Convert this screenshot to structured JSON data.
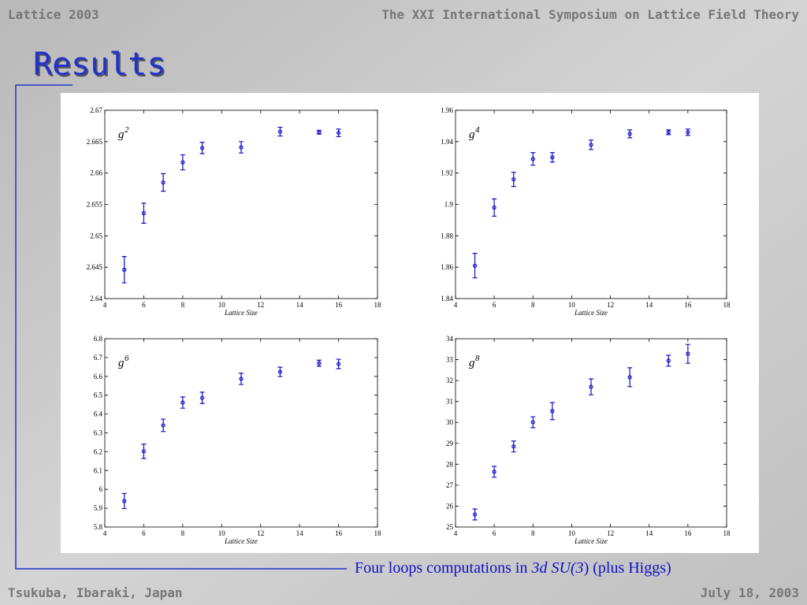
{
  "slide": {
    "header_left": "Lattice 2003",
    "header_right": "The XXI International Symposium on Lattice Field Theory",
    "title": "Results",
    "caption": [
      {
        "text": "Four loops computations in ",
        "italic": false
      },
      {
        "text": "3d SU(3",
        "italic": true
      },
      {
        "text": ") (plus Higgs)",
        "italic": false
      }
    ],
    "footer_left": "Tsukuba, Ibaraki, Japan",
    "footer_right": "July 18, 2003"
  },
  "chart_data": [
    {
      "type": "scatter",
      "title": "g",
      "title_superscript": "2",
      "xlabel": "Lattice Size",
      "xlim": [
        4,
        18
      ],
      "xticks": [
        4,
        6,
        8,
        10,
        12,
        14,
        16,
        18
      ],
      "ylim": [
        2.64,
        2.67
      ],
      "yticks": [
        2.64,
        2.645,
        2.65,
        2.655,
        2.66,
        2.665,
        2.67
      ],
      "color": "#1010c8",
      "x": [
        5,
        6,
        7,
        8,
        9,
        11,
        13,
        15,
        16
      ],
      "values": [
        2.6446,
        2.6536,
        2.6585,
        2.6617,
        2.664,
        2.6641,
        2.6666,
        2.6665,
        2.6664
      ],
      "errors": [
        0.0021,
        0.0016,
        0.0014,
        0.0012,
        0.0009,
        0.0009,
        0.0007,
        0.0003,
        0.0006
      ]
    },
    {
      "type": "scatter",
      "title": "g",
      "title_superscript": "4",
      "xlabel": "Lattice Size",
      "xlim": [
        4,
        18
      ],
      "xticks": [
        4,
        6,
        8,
        10,
        12,
        14,
        16,
        18
      ],
      "ylim": [
        1.84,
        1.96
      ],
      "yticks": [
        1.84,
        1.86,
        1.88,
        1.9,
        1.92,
        1.94,
        1.96
      ],
      "color": "#1010c8",
      "x": [
        5,
        6,
        7,
        8,
        9,
        11,
        13,
        15,
        16
      ],
      "values": [
        1.861,
        1.898,
        1.916,
        1.929,
        1.93,
        1.938,
        1.945,
        1.946,
        1.946
      ],
      "errors": [
        0.0078,
        0.0055,
        0.0045,
        0.004,
        0.003,
        0.003,
        0.0025,
        0.0015,
        0.002
      ]
    },
    {
      "type": "scatter",
      "title": "g",
      "title_superscript": "6",
      "xlabel": "Lattice Size",
      "xlim": [
        4,
        18
      ],
      "xticks": [
        4,
        6,
        8,
        10,
        12,
        14,
        16,
        18
      ],
      "ylim": [
        5.8,
        6.8
      ],
      "yticks": [
        5.8,
        5.9,
        6,
        6.1,
        6.2,
        6.3,
        6.4,
        6.5,
        6.6,
        6.7,
        6.8
      ],
      "color": "#1010c8",
      "x": [
        5,
        6,
        7,
        8,
        9,
        11,
        13,
        15,
        16
      ],
      "values": [
        5.938,
        6.202,
        6.34,
        6.461,
        6.486,
        6.587,
        6.624,
        6.67,
        6.666
      ],
      "errors": [
        0.04,
        0.038,
        0.033,
        0.03,
        0.03,
        0.03,
        0.025,
        0.016,
        0.025
      ]
    },
    {
      "type": "scatter",
      "title": "g",
      "title_superscript": "8",
      "xlabel": "Lattice Size",
      "xlim": [
        4,
        18
      ],
      "xticks": [
        4,
        6,
        8,
        10,
        12,
        14,
        16,
        18
      ],
      "ylim": [
        25,
        34
      ],
      "yticks": [
        25,
        26,
        27,
        28,
        29,
        30,
        31,
        32,
        33,
        34
      ],
      "color": "#1010c8",
      "x": [
        5,
        6,
        7,
        8,
        9,
        11,
        13,
        15,
        16
      ],
      "values": [
        25.6,
        27.64,
        28.85,
        30.01,
        30.54,
        31.7,
        32.16,
        32.95,
        33.28
      ],
      "errors": [
        0.26,
        0.26,
        0.26,
        0.26,
        0.41,
        0.38,
        0.45,
        0.26,
        0.45
      ]
    }
  ]
}
